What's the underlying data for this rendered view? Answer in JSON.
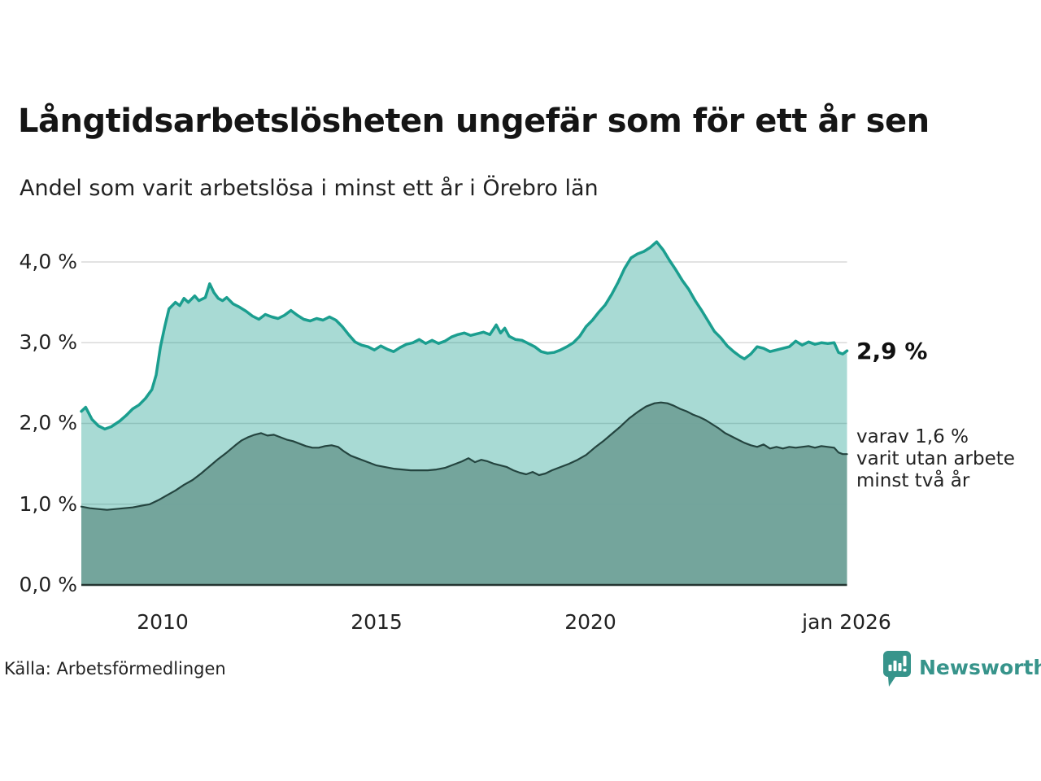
{
  "chart_data": {
    "type": "area",
    "title": "Långtidsarbetslösheten ungefär som för ett år sen",
    "subtitle": "Andel som varit arbetslösa i minst ett år i Örebro län",
    "source": "Källa: Arbetsförmedlingen",
    "unit": "%",
    "x_domain": [
      2008.1,
      2026.0
    ],
    "y_domain": [
      0,
      4.4
    ],
    "grid": true,
    "legend_position": "right-annotations",
    "yticks": [
      {
        "value": 0,
        "label": "0,0 %"
      },
      {
        "value": 1,
        "label": "1,0 %"
      },
      {
        "value": 2,
        "label": "2,0 %"
      },
      {
        "value": 3,
        "label": "3,0 %"
      },
      {
        "value": 4,
        "label": "4,0 %"
      }
    ],
    "xticks": [
      {
        "value": 2010,
        "label": "2010"
      },
      {
        "value": 2015,
        "label": "2015"
      },
      {
        "value": 2020,
        "label": "2020"
      },
      {
        "value": 2026,
        "label": "jan 2026"
      }
    ],
    "annotations": {
      "latest_total_label": "2,9 %",
      "latest_total_value": 2.9,
      "note_line1": "varav 1,6 %",
      "note_line2": "varit utan arbete",
      "note_line3": "minst två år",
      "latest_two_year_value": 1.6
    },
    "colors": {
      "accent_line": "#1b9e8f",
      "accent_fill": "rgba(27,158,143,0.38)",
      "dark_line": "#24443f",
      "dark_fill": "rgba(113,162,153,0.95)",
      "grid": "#d9d9d9",
      "axis": "#233430",
      "brand": "#37948b",
      "text": "#222222"
    },
    "series": [
      {
        "name": "Andel arbetslösa minst ett år",
        "points": [
          [
            2008.1,
            2.15
          ],
          [
            2008.2,
            2.2
          ],
          [
            2008.35,
            2.05
          ],
          [
            2008.5,
            1.97
          ],
          [
            2008.65,
            1.93
          ],
          [
            2008.8,
            1.96
          ],
          [
            2009.0,
            2.03
          ],
          [
            2009.15,
            2.1
          ],
          [
            2009.3,
            2.18
          ],
          [
            2009.45,
            2.23
          ],
          [
            2009.6,
            2.31
          ],
          [
            2009.75,
            2.42
          ],
          [
            2009.85,
            2.6
          ],
          [
            2009.95,
            2.95
          ],
          [
            2010.05,
            3.2
          ],
          [
            2010.15,
            3.42
          ],
          [
            2010.3,
            3.5
          ],
          [
            2010.4,
            3.46
          ],
          [
            2010.5,
            3.55
          ],
          [
            2010.6,
            3.5
          ],
          [
            2010.75,
            3.58
          ],
          [
            2010.85,
            3.52
          ],
          [
            2011.0,
            3.56
          ],
          [
            2011.1,
            3.73
          ],
          [
            2011.2,
            3.62
          ],
          [
            2011.3,
            3.55
          ],
          [
            2011.4,
            3.52
          ],
          [
            2011.5,
            3.56
          ],
          [
            2011.65,
            3.48
          ],
          [
            2011.8,
            3.44
          ],
          [
            2011.95,
            3.39
          ],
          [
            2012.1,
            3.33
          ],
          [
            2012.25,
            3.29
          ],
          [
            2012.4,
            3.35
          ],
          [
            2012.55,
            3.32
          ],
          [
            2012.7,
            3.3
          ],
          [
            2012.85,
            3.34
          ],
          [
            2013.0,
            3.4
          ],
          [
            2013.15,
            3.34
          ],
          [
            2013.3,
            3.29
          ],
          [
            2013.45,
            3.27
          ],
          [
            2013.6,
            3.3
          ],
          [
            2013.75,
            3.28
          ],
          [
            2013.9,
            3.32
          ],
          [
            2014.05,
            3.28
          ],
          [
            2014.2,
            3.2
          ],
          [
            2014.35,
            3.1
          ],
          [
            2014.5,
            3.01
          ],
          [
            2014.65,
            2.97
          ],
          [
            2014.8,
            2.95
          ],
          [
            2014.95,
            2.91
          ],
          [
            2015.1,
            2.96
          ],
          [
            2015.25,
            2.92
          ],
          [
            2015.4,
            2.89
          ],
          [
            2015.55,
            2.94
          ],
          [
            2015.7,
            2.98
          ],
          [
            2015.85,
            3.0
          ],
          [
            2016.0,
            3.04
          ],
          [
            2016.15,
            2.99
          ],
          [
            2016.3,
            3.03
          ],
          [
            2016.45,
            2.99
          ],
          [
            2016.6,
            3.02
          ],
          [
            2016.75,
            3.07
          ],
          [
            2016.9,
            3.1
          ],
          [
            2017.05,
            3.12
          ],
          [
            2017.2,
            3.09
          ],
          [
            2017.35,
            3.11
          ],
          [
            2017.5,
            3.13
          ],
          [
            2017.65,
            3.1
          ],
          [
            2017.8,
            3.22
          ],
          [
            2017.9,
            3.12
          ],
          [
            2018.0,
            3.18
          ],
          [
            2018.1,
            3.08
          ],
          [
            2018.25,
            3.04
          ],
          [
            2018.4,
            3.03
          ],
          [
            2018.55,
            2.99
          ],
          [
            2018.7,
            2.95
          ],
          [
            2018.85,
            2.89
          ],
          [
            2019.0,
            2.87
          ],
          [
            2019.15,
            2.88
          ],
          [
            2019.3,
            2.91
          ],
          [
            2019.45,
            2.95
          ],
          [
            2019.6,
            3.0
          ],
          [
            2019.75,
            3.08
          ],
          [
            2019.9,
            3.2
          ],
          [
            2020.05,
            3.28
          ],
          [
            2020.2,
            3.38
          ],
          [
            2020.35,
            3.47
          ],
          [
            2020.5,
            3.6
          ],
          [
            2020.65,
            3.75
          ],
          [
            2020.8,
            3.92
          ],
          [
            2020.95,
            4.05
          ],
          [
            2021.1,
            4.1
          ],
          [
            2021.25,
            4.13
          ],
          [
            2021.4,
            4.18
          ],
          [
            2021.55,
            4.25
          ],
          [
            2021.7,
            4.15
          ],
          [
            2021.85,
            4.02
          ],
          [
            2022.0,
            3.9
          ],
          [
            2022.15,
            3.77
          ],
          [
            2022.3,
            3.66
          ],
          [
            2022.45,
            3.52
          ],
          [
            2022.6,
            3.4
          ],
          [
            2022.75,
            3.27
          ],
          [
            2022.9,
            3.14
          ],
          [
            2023.05,
            3.06
          ],
          [
            2023.2,
            2.96
          ],
          [
            2023.35,
            2.89
          ],
          [
            2023.5,
            2.83
          ],
          [
            2023.6,
            2.8
          ],
          [
            2023.75,
            2.86
          ],
          [
            2023.9,
            2.95
          ],
          [
            2024.05,
            2.93
          ],
          [
            2024.2,
            2.89
          ],
          [
            2024.35,
            2.91
          ],
          [
            2024.5,
            2.93
          ],
          [
            2024.65,
            2.95
          ],
          [
            2024.8,
            3.02
          ],
          [
            2024.95,
            2.97
          ],
          [
            2025.1,
            3.01
          ],
          [
            2025.25,
            2.98
          ],
          [
            2025.4,
            3.0
          ],
          [
            2025.55,
            2.99
          ],
          [
            2025.7,
            3.0
          ],
          [
            2025.8,
            2.88
          ],
          [
            2025.9,
            2.86
          ],
          [
            2026.0,
            2.9
          ]
        ]
      },
      {
        "name": "Varav utan arbete minst två år",
        "points": [
          [
            2008.1,
            0.97
          ],
          [
            2008.3,
            0.95
          ],
          [
            2008.5,
            0.94
          ],
          [
            2008.7,
            0.93
          ],
          [
            2008.9,
            0.94
          ],
          [
            2009.1,
            0.95
          ],
          [
            2009.3,
            0.96
          ],
          [
            2009.5,
            0.98
          ],
          [
            2009.7,
            1.0
          ],
          [
            2009.9,
            1.05
          ],
          [
            2010.1,
            1.11
          ],
          [
            2010.3,
            1.17
          ],
          [
            2010.5,
            1.24
          ],
          [
            2010.7,
            1.3
          ],
          [
            2010.9,
            1.38
          ],
          [
            2011.1,
            1.47
          ],
          [
            2011.3,
            1.56
          ],
          [
            2011.5,
            1.64
          ],
          [
            2011.7,
            1.73
          ],
          [
            2011.85,
            1.79
          ],
          [
            2012.0,
            1.83
          ],
          [
            2012.15,
            1.86
          ],
          [
            2012.3,
            1.88
          ],
          [
            2012.45,
            1.85
          ],
          [
            2012.6,
            1.86
          ],
          [
            2012.75,
            1.83
          ],
          [
            2012.9,
            1.8
          ],
          [
            2013.05,
            1.78
          ],
          [
            2013.2,
            1.75
          ],
          [
            2013.35,
            1.72
          ],
          [
            2013.5,
            1.7
          ],
          [
            2013.65,
            1.7
          ],
          [
            2013.8,
            1.72
          ],
          [
            2013.95,
            1.73
          ],
          [
            2014.1,
            1.71
          ],
          [
            2014.25,
            1.65
          ],
          [
            2014.4,
            1.6
          ],
          [
            2014.6,
            1.56
          ],
          [
            2014.8,
            1.52
          ],
          [
            2015.0,
            1.48
          ],
          [
            2015.2,
            1.46
          ],
          [
            2015.4,
            1.44
          ],
          [
            2015.6,
            1.43
          ],
          [
            2015.8,
            1.42
          ],
          [
            2016.0,
            1.42
          ],
          [
            2016.2,
            1.42
          ],
          [
            2016.4,
            1.43
          ],
          [
            2016.6,
            1.45
          ],
          [
            2016.8,
            1.49
          ],
          [
            2017.0,
            1.53
          ],
          [
            2017.15,
            1.57
          ],
          [
            2017.3,
            1.52
          ],
          [
            2017.45,
            1.55
          ],
          [
            2017.6,
            1.53
          ],
          [
            2017.75,
            1.5
          ],
          [
            2017.9,
            1.48
          ],
          [
            2018.05,
            1.46
          ],
          [
            2018.2,
            1.42
          ],
          [
            2018.35,
            1.39
          ],
          [
            2018.5,
            1.37
          ],
          [
            2018.65,
            1.4
          ],
          [
            2018.8,
            1.36
          ],
          [
            2018.95,
            1.38
          ],
          [
            2019.1,
            1.42
          ],
          [
            2019.3,
            1.46
          ],
          [
            2019.5,
            1.5
          ],
          [
            2019.7,
            1.55
          ],
          [
            2019.9,
            1.61
          ],
          [
            2020.1,
            1.7
          ],
          [
            2020.3,
            1.78
          ],
          [
            2020.5,
            1.87
          ],
          [
            2020.7,
            1.96
          ],
          [
            2020.9,
            2.06
          ],
          [
            2021.1,
            2.14
          ],
          [
            2021.3,
            2.21
          ],
          [
            2021.5,
            2.25
          ],
          [
            2021.65,
            2.26
          ],
          [
            2021.8,
            2.25
          ],
          [
            2021.95,
            2.22
          ],
          [
            2022.1,
            2.18
          ],
          [
            2022.25,
            2.15
          ],
          [
            2022.4,
            2.11
          ],
          [
            2022.55,
            2.08
          ],
          [
            2022.7,
            2.04
          ],
          [
            2022.85,
            1.99
          ],
          [
            2023.0,
            1.94
          ],
          [
            2023.15,
            1.88
          ],
          [
            2023.3,
            1.84
          ],
          [
            2023.45,
            1.8
          ],
          [
            2023.6,
            1.76
          ],
          [
            2023.75,
            1.73
          ],
          [
            2023.9,
            1.71
          ],
          [
            2024.05,
            1.74
          ],
          [
            2024.2,
            1.69
          ],
          [
            2024.35,
            1.71
          ],
          [
            2024.5,
            1.69
          ],
          [
            2024.65,
            1.71
          ],
          [
            2024.8,
            1.7
          ],
          [
            2024.95,
            1.71
          ],
          [
            2025.1,
            1.72
          ],
          [
            2025.25,
            1.7
          ],
          [
            2025.4,
            1.72
          ],
          [
            2025.55,
            1.71
          ],
          [
            2025.7,
            1.7
          ],
          [
            2025.8,
            1.64
          ],
          [
            2025.9,
            1.62
          ],
          [
            2026.0,
            1.62
          ]
        ]
      }
    ]
  },
  "branding": {
    "name": "Newsworthy"
  }
}
